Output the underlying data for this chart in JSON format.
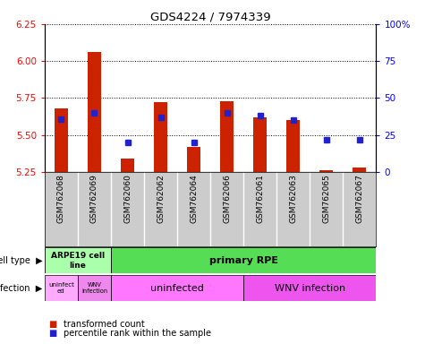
{
  "title": "GDS4224 / 7974339",
  "samples": [
    "GSM762068",
    "GSM762069",
    "GSM762060",
    "GSM762062",
    "GSM762064",
    "GSM762066",
    "GSM762061",
    "GSM762063",
    "GSM762065",
    "GSM762067"
  ],
  "transformed_count": [
    5.68,
    6.06,
    5.34,
    5.72,
    5.42,
    5.73,
    5.62,
    5.6,
    5.26,
    5.28
  ],
  "percentile_rank": [
    36,
    40,
    20,
    37,
    20,
    40,
    38,
    35,
    22,
    22
  ],
  "y_min": 5.25,
  "y_max": 6.25,
  "y_ticks": [
    5.25,
    5.5,
    5.75,
    6.0,
    6.25
  ],
  "y2_ticks": [
    0,
    25,
    50,
    75,
    100
  ],
  "y2_ticklabels": [
    "0",
    "25",
    "50",
    "75",
    "100%"
  ],
  "bar_color": "#cc2200",
  "dot_color": "#2222cc",
  "bar_width": 0.4,
  "dot_size": 5,
  "cell_type_colors": [
    "#aaffaa",
    "#55dd55"
  ],
  "infection_colors_small": [
    "#ffaaff",
    "#ee88ee"
  ],
  "infection_colors_large": [
    "#ff77ff",
    "#ee55ee"
  ],
  "row_label_cell_type": "cell type",
  "row_label_infection": "infection",
  "legend_red": "transformed count",
  "legend_blue": "percentile rank within the sample",
  "tick_bg_color": "#cccccc",
  "tick_sep_color": "#aaaaaa"
}
